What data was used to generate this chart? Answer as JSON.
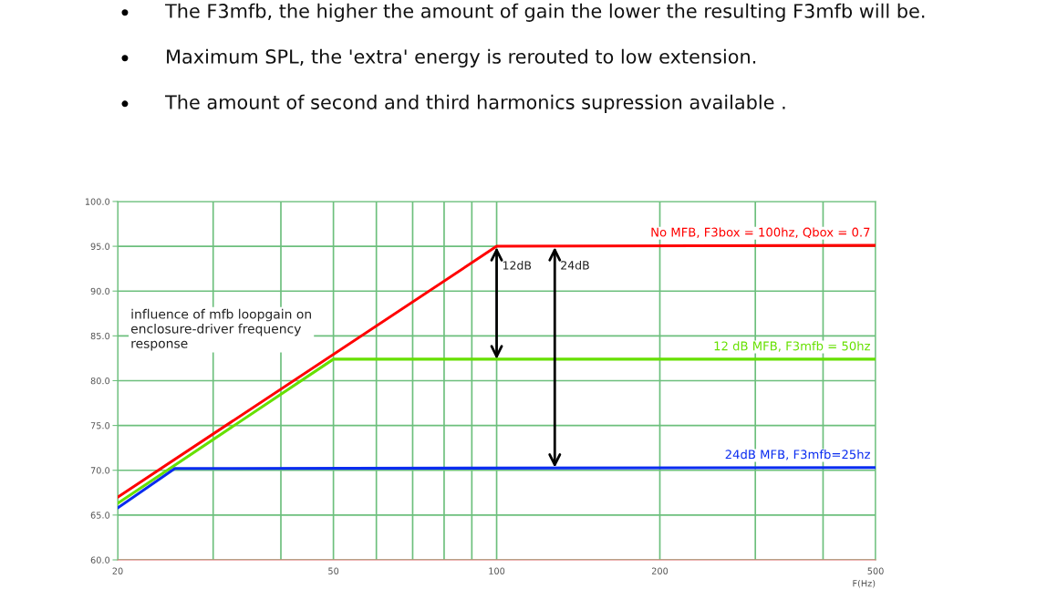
{
  "chart_data": {
    "type": "line",
    "title": "influence of mfb loopgain on\nenclosure-driver frequency\nresponse",
    "xlabel": "F(Hz)",
    "log": "x",
    "xlim": [
      20,
      500
    ],
    "xticks": [
      20,
      {
        "value": 30,
        "label": null
      },
      {
        "value": 40,
        "label": null
      },
      50,
      {
        "value": 60,
        "label": null
      },
      {
        "value": 70,
        "label": null
      },
      {
        "value": 80,
        "label": null
      },
      {
        "value": 90,
        "label": null
      },
      100,
      200,
      {
        "value": 300,
        "label": null
      },
      {
        "value": 400,
        "label": null
      },
      500
    ],
    "ylim": [
      60,
      100
    ],
    "yticks": [
      {
        "value": 60,
        "label": "60.0"
      },
      {
        "value": 65,
        "label": "65.0"
      },
      {
        "value": 70,
        "label": "70.0"
      },
      {
        "value": 75,
        "label": "75.0"
      },
      {
        "value": 80,
        "label": "80.0"
      },
      {
        "value": 85,
        "label": "85.0"
      },
      {
        "value": 90,
        "label": "90.0"
      },
      {
        "value": 95,
        "label": "95.0"
      },
      {
        "value": 100,
        "label": "100.0"
      }
    ],
    "grid": true,
    "series": [
      {
        "name": "No MFB, F3box = 100hz, Qbox = 0.7",
        "color": "#ff0000",
        "x": [
          20,
          100,
          500
        ],
        "values": [
          67.0,
          95.0,
          95.1
        ]
      },
      {
        "name": "12 dB MFB, F3mfb = 50hz",
        "color": "#66e000",
        "x": [
          20,
          50,
          500
        ],
        "values": [
          66.3,
          82.4,
          82.4
        ]
      },
      {
        "name": "24dB MFB, F3mfb=25hz",
        "color": "#0a2cf0",
        "x": [
          20,
          25.5,
          500
        ],
        "values": [
          65.8,
          70.2,
          70.3
        ]
      }
    ],
    "annotations": [
      "The F3mfb, the higher the amount of gain the lower the resulting F3mfb will be.",
      "Maximum SPL, the 'extra' energy is rerouted to low extension.",
      "The amount of second and third harmonics supression available .",
      {
        "text": "12dB",
        "x": 100,
        "y": 82.4
      },
      {
        "text": "24dB",
        "x": 128,
        "y": 70.3
      }
    ]
  }
}
